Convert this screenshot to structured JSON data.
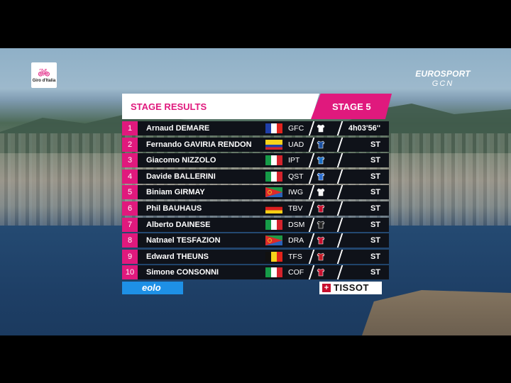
{
  "brand": {
    "giro_logo_text": "Giro d'Italia",
    "broadcaster_line1": "EUROSPORT",
    "broadcaster_line2": "GCN"
  },
  "header": {
    "title": "STAGE RESULTS",
    "stage": "STAGE 5"
  },
  "colors": {
    "accent": "#e0197d",
    "row_bg": "#0f1219",
    "sponsor_left": "#1e90e6"
  },
  "results": [
    {
      "pos": "1",
      "first": "Arnaud",
      "last": "DEMARE",
      "flag": "flag-france",
      "team": "GFC",
      "jersey": "jersey-icon",
      "time": "4h03'56''"
    },
    {
      "pos": "2",
      "first": "Fernando",
      "last": "GAVIRIA RENDON",
      "flag": "flag-colombia",
      "team": "UAD",
      "jersey": "jersey-icon",
      "time": "ST"
    },
    {
      "pos": "3",
      "first": "Giacomo",
      "last": "NIZZOLO",
      "flag": "flag-italy",
      "team": "IPT",
      "jersey": "jersey-icon",
      "time": "ST"
    },
    {
      "pos": "4",
      "first": "Davide",
      "last": "BALLERINI",
      "flag": "flag-italy",
      "team": "QST",
      "jersey": "jersey-icon",
      "time": "ST"
    },
    {
      "pos": "5",
      "first": "Biniam",
      "last": "GIRMAY",
      "flag": "flag-eritrea",
      "team": "IWG",
      "jersey": "jersey-icon",
      "time": "ST"
    },
    {
      "pos": "6",
      "first": "Phil",
      "last": "BAUHAUS",
      "flag": "flag-germany",
      "team": "TBV",
      "jersey": "jersey-icon",
      "time": "ST"
    },
    {
      "pos": "7",
      "first": "Alberto",
      "last": "DAINESE",
      "flag": "flag-italy",
      "team": "DSM",
      "jersey": "jersey-icon",
      "time": "ST"
    },
    {
      "pos": "8",
      "first": "Natnael",
      "last": "TESFAZION",
      "flag": "flag-eritrea",
      "team": "DRA",
      "jersey": "jersey-icon",
      "time": "ST"
    },
    {
      "pos": "9",
      "first": "Edward",
      "last": "THEUNS",
      "flag": "flag-belgium",
      "team": "TFS",
      "jersey": "jersey-icon",
      "time": "ST"
    },
    {
      "pos": "10",
      "first": "Simone",
      "last": "CONSONNI",
      "flag": "flag-italy",
      "team": "COF",
      "jersey": "jersey-icon",
      "time": "ST"
    }
  ],
  "sponsors": {
    "left": "eolo",
    "right": "TISSOT"
  }
}
